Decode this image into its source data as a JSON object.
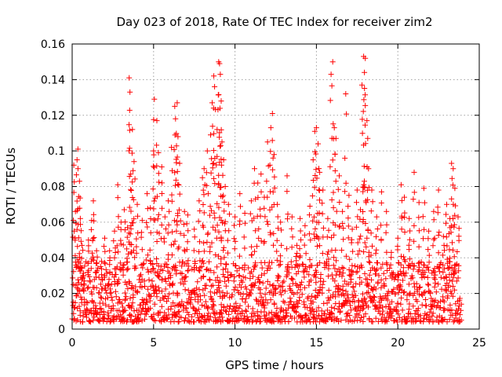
{
  "chart_data": {
    "type": "scatter",
    "title": "Day 023 of 2018, Rate Of TEC Index for receiver zim2",
    "xlabel": "GPS time / hours",
    "ylabel": "ROTI / TECUs",
    "xlim": [
      0,
      25
    ],
    "ylim": [
      0,
      0.16
    ],
    "xticks": [
      "0",
      "5",
      "10",
      "15",
      "20",
      "25"
    ],
    "yticks": [
      "0",
      "0.02",
      "0.04",
      "0.06",
      "0.08",
      "0.1",
      "0.12",
      "0.14",
      "0.16"
    ],
    "grid": true,
    "marker": "+",
    "color": "#ff0000",
    "series": [
      {
        "points": [
          [
            0.1,
            0.092
          ],
          [
            0.2,
            0.066
          ],
          [
            0.3,
            0.095
          ],
          [
            0.35,
            0.101
          ],
          [
            0.45,
            0.083
          ],
          [
            0.5,
            0.062
          ],
          [
            0.6,
            0.047
          ],
          [
            0.7,
            0.03
          ],
          [
            1.0,
            0.05
          ],
          [
            1.2,
            0.061
          ],
          [
            1.3,
            0.072
          ],
          [
            1.5,
            0.044
          ],
          [
            1.8,
            0.038
          ],
          [
            2.0,
            0.051
          ],
          [
            2.3,
            0.044
          ],
          [
            2.6,
            0.055
          ],
          [
            2.8,
            0.081
          ],
          [
            3.0,
            0.06
          ],
          [
            3.2,
            0.067
          ],
          [
            3.4,
            0.057
          ],
          [
            3.5,
            0.141
          ],
          [
            3.55,
            0.133
          ],
          [
            3.7,
            0.112
          ],
          [
            3.8,
            0.094
          ],
          [
            3.6,
            0.087
          ],
          [
            4.0,
            0.07
          ],
          [
            4.3,
            0.061
          ],
          [
            4.6,
            0.076
          ],
          [
            4.8,
            0.068
          ],
          [
            5.0,
            0.1
          ],
          [
            5.05,
            0.129
          ],
          [
            5.2,
            0.117
          ],
          [
            5.3,
            0.099
          ],
          [
            5.5,
            0.091
          ],
          [
            5.7,
            0.063
          ],
          [
            5.9,
            0.072
          ],
          [
            6.1,
            0.102
          ],
          [
            6.3,
            0.125
          ],
          [
            6.35,
            0.118
          ],
          [
            6.45,
            0.127
          ],
          [
            6.5,
            0.108
          ],
          [
            6.6,
            0.093
          ],
          [
            6.9,
            0.066
          ],
          [
            7.1,
            0.064
          ],
          [
            7.5,
            0.056
          ],
          [
            7.8,
            0.072
          ],
          [
            8.0,
            0.085
          ],
          [
            8.1,
            0.09
          ],
          [
            8.3,
            0.1
          ],
          [
            8.5,
            0.109
          ],
          [
            8.6,
            0.127
          ],
          [
            8.7,
            0.142
          ],
          [
            8.75,
            0.136
          ],
          [
            8.9,
            0.112
          ],
          [
            9.0,
            0.15
          ],
          [
            9.05,
            0.149
          ],
          [
            9.1,
            0.143
          ],
          [
            9.15,
            0.128
          ],
          [
            9.2,
            0.105
          ],
          [
            9.3,
            0.095
          ],
          [
            9.4,
            0.08
          ],
          [
            9.6,
            0.07
          ],
          [
            10.0,
            0.063
          ],
          [
            10.3,
            0.076
          ],
          [
            10.6,
            0.065
          ],
          [
            11.0,
            0.072
          ],
          [
            11.2,
            0.09
          ],
          [
            11.4,
            0.082
          ],
          [
            11.6,
            0.087
          ],
          [
            11.8,
            0.074
          ],
          [
            12.0,
            0.105
          ],
          [
            12.2,
            0.113
          ],
          [
            12.3,
            0.121
          ],
          [
            12.4,
            0.098
          ],
          [
            12.6,
            0.07
          ],
          [
            12.8,
            0.06
          ],
          [
            13.2,
            0.086
          ],
          [
            13.5,
            0.063
          ],
          [
            13.8,
            0.047
          ],
          [
            14.0,
            0.062
          ],
          [
            14.3,
            0.058
          ],
          [
            14.6,
            0.069
          ],
          [
            14.8,
            0.095
          ],
          [
            14.9,
            0.111
          ],
          [
            15.0,
            0.113
          ],
          [
            15.1,
            0.104
          ],
          [
            15.2,
            0.088
          ],
          [
            15.4,
            0.078
          ],
          [
            15.7,
            0.062
          ],
          [
            15.9,
            0.143
          ],
          [
            16.0,
            0.15
          ],
          [
            16.1,
            0.113
          ],
          [
            16.2,
            0.107
          ],
          [
            16.4,
            0.086
          ],
          [
            16.6,
            0.066
          ],
          [
            16.8,
            0.132
          ],
          [
            17.0,
            0.075
          ],
          [
            17.2,
            0.056
          ],
          [
            17.5,
            0.078
          ],
          [
            17.7,
            0.067
          ],
          [
            17.8,
            0.137
          ],
          [
            17.9,
            0.153
          ],
          [
            17.95,
            0.144
          ],
          [
            18.0,
            0.152
          ],
          [
            18.1,
            0.117
          ],
          [
            18.2,
            0.09
          ],
          [
            18.4,
            0.078
          ],
          [
            18.7,
            0.063
          ],
          [
            19.0,
            0.077
          ],
          [
            19.3,
            0.066
          ],
          [
            19.6,
            0.043
          ],
          [
            20.0,
            0.051
          ],
          [
            20.2,
            0.081
          ],
          [
            20.4,
            0.074
          ],
          [
            20.7,
            0.062
          ],
          [
            21.0,
            0.088
          ],
          [
            21.3,
            0.071
          ],
          [
            21.6,
            0.079
          ],
          [
            21.9,
            0.055
          ],
          [
            22.2,
            0.066
          ],
          [
            22.5,
            0.078
          ],
          [
            22.8,
            0.052
          ],
          [
            23.0,
            0.07
          ],
          [
            23.2,
            0.062
          ],
          [
            23.3,
            0.093
          ],
          [
            23.4,
            0.09
          ],
          [
            23.5,
            0.079
          ],
          [
            23.7,
            0.063
          ]
        ],
        "baseline": {
          "x_start": 0.0,
          "x_end": 23.9,
          "x_step": 0.05,
          "y_min": 0.004,
          "y_max": 0.038
        }
      }
    ]
  }
}
